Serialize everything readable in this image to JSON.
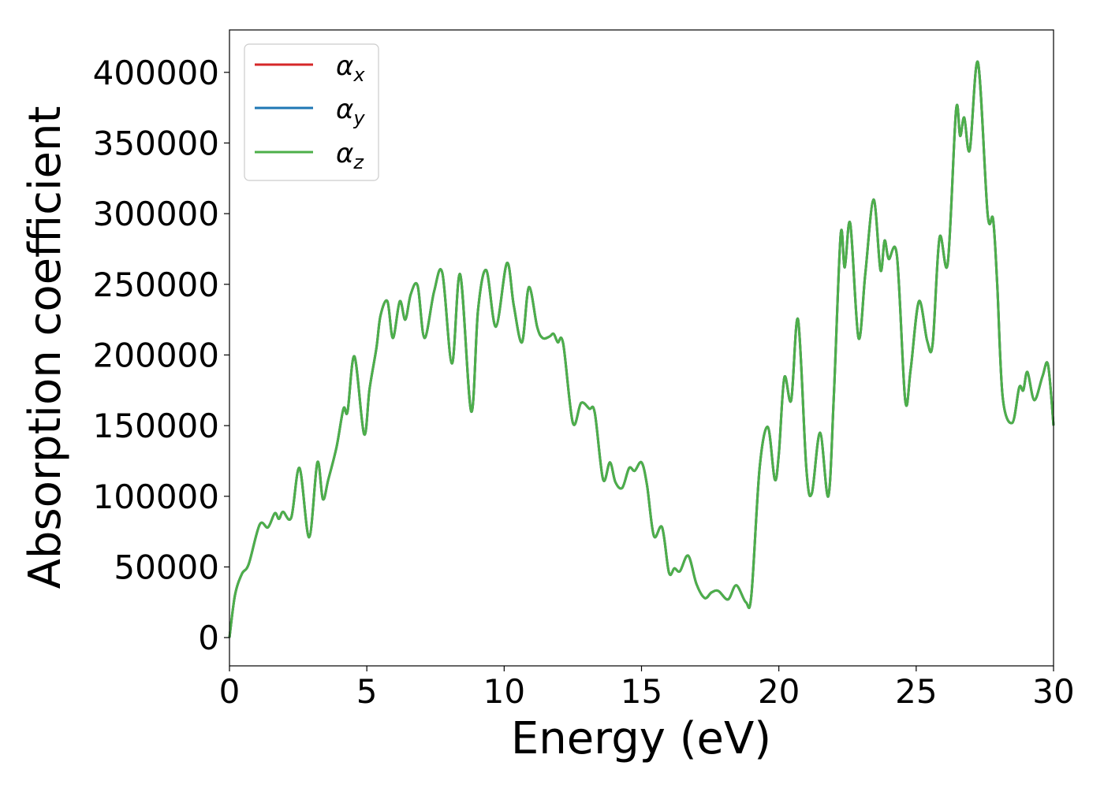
{
  "chart_data": {
    "type": "line",
    "xlabel": "Energy (eV)",
    "ylabel": "Absorption coefficient",
    "xlim": [
      0,
      30
    ],
    "ylim": [
      -20000,
      430000
    ],
    "xticks": [
      0,
      5,
      10,
      15,
      20,
      25,
      30
    ],
    "yticks": [
      0,
      50000,
      100000,
      150000,
      200000,
      250000,
      300000,
      350000,
      400000
    ],
    "grid": false,
    "legend_position": "top-left",
    "series": [
      {
        "name": "x",
        "color": "#d62728"
      },
      {
        "name": "y",
        "color": "#1f77b4"
      },
      {
        "name": "z",
        "color": "#4daf4a"
      }
    ],
    "note_same_data": "all three series share the values below",
    "x": [
      0,
      0.2,
      0.45,
      0.7,
      1.1,
      1.4,
      1.65,
      1.8,
      1.95,
      2.25,
      2.55,
      2.9,
      3.2,
      3.4,
      3.6,
      3.9,
      4.15,
      4.3,
      4.55,
      4.9,
      5.1,
      5.35,
      5.5,
      5.75,
      5.95,
      6.2,
      6.4,
      6.6,
      6.85,
      7.1,
      7.45,
      7.75,
      8.1,
      8.4,
      8.8,
      9.05,
      9.35,
      9.7,
      10.1,
      10.35,
      10.65,
      10.9,
      11.2,
      11.4,
      11.65,
      11.8,
      11.95,
      12.15,
      12.5,
      12.8,
      13.1,
      13.3,
      13.6,
      13.85,
      14.05,
      14.3,
      14.55,
      14.75,
      15.0,
      15.2,
      15.45,
      15.75,
      16.0,
      16.2,
      16.4,
      16.7,
      17.0,
      17.3,
      17.55,
      17.8,
      18.15,
      18.45,
      18.8,
      19.0,
      19.3,
      19.6,
      19.85,
      20.0,
      20.2,
      20.45,
      20.7,
      21.0,
      21.2,
      21.5,
      21.8,
      22.0,
      22.25,
      22.4,
      22.6,
      22.9,
      23.15,
      23.45,
      23.7,
      23.85,
      24.0,
      24.3,
      24.6,
      24.8,
      25.1,
      25.4,
      25.6,
      25.85,
      26.15,
      26.45,
      26.6,
      26.75,
      26.95,
      27.25,
      27.6,
      27.8,
      27.95,
      28.15,
      28.5,
      28.75,
      28.9,
      29.05,
      29.3,
      29.6,
      29.8,
      30.0
    ],
    "y": [
      0,
      30000,
      45000,
      52000,
      80000,
      78000,
      88000,
      84000,
      89000,
      85000,
      120000,
      71000,
      124000,
      98000,
      112000,
      135000,
      162000,
      160000,
      199000,
      144000,
      176000,
      205000,
      228000,
      238000,
      212000,
      238000,
      225000,
      243000,
      249000,
      212000,
      245000,
      258000,
      194000,
      257000,
      160000,
      232000,
      260000,
      220000,
      265000,
      235000,
      209000,
      248000,
      220000,
      212000,
      213000,
      215000,
      209000,
      208000,
      152000,
      166000,
      162000,
      159000,
      112000,
      124000,
      110000,
      106000,
      120000,
      118000,
      124000,
      108000,
      72000,
      78000,
      46000,
      49000,
      47000,
      58000,
      38000,
      28000,
      32000,
      33000,
      27000,
      37000,
      25000,
      30000,
      120000,
      149000,
      112000,
      130000,
      184000,
      168000,
      225000,
      120000,
      102000,
      145000,
      100000,
      170000,
      285000,
      262000,
      293000,
      212000,
      258000,
      310000,
      260000,
      281000,
      268000,
      270000,
      168000,
      190000,
      238000,
      210000,
      208000,
      283000,
      265000,
      373000,
      355000,
      368000,
      345000,
      407000,
      300000,
      296000,
      250000,
      170000,
      152000,
      177000,
      175000,
      188000,
      168000,
      185000,
      193000,
      150000
    ]
  }
}
